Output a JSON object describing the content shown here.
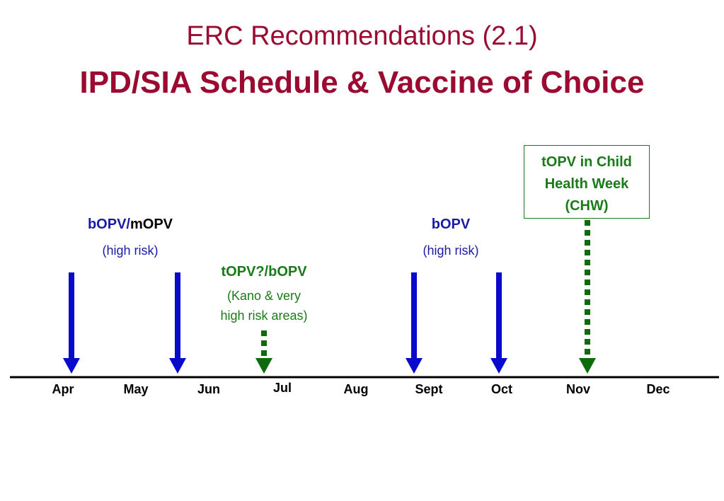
{
  "title": {
    "line1": "ERC Recommendations (2.1)",
    "line2": "IPD/SIA Schedule & Vaccine of Choice"
  },
  "annotations": {
    "apr_may": {
      "vaccine_blue": "bOPV/",
      "vaccine_black": "mOPV",
      "note": "(high risk)"
    },
    "jul": {
      "vaccine": "tOPV?/bOPV",
      "note_line1": "(Kano & very",
      "note_line2": "high risk areas)"
    },
    "sept_oct": {
      "vaccine": "bOPV",
      "note": "(high risk)"
    },
    "nov": {
      "box_text": "tOPV in Child\nHealth Week\n(CHW)"
    }
  },
  "months": [
    "Apr",
    "May",
    "Jun",
    "Jul",
    "Aug",
    "Sept",
    "Oct",
    "Nov",
    "Dec"
  ],
  "arrows": [
    {
      "month": "Apr",
      "style": "solid",
      "color": "#0a0acc"
    },
    {
      "month": "Jun",
      "style": "solid",
      "color": "#0a0acc"
    },
    {
      "month": "Jul",
      "style": "dotted",
      "color": "#0d6b0d"
    },
    {
      "month": "Sept",
      "style": "solid",
      "color": "#0a0acc"
    },
    {
      "month": "Oct",
      "style": "solid",
      "color": "#0a0acc"
    },
    {
      "month": "Nov",
      "style": "dotted",
      "color": "#0d6b0d"
    }
  ],
  "colors": {
    "title": "#9b0a31",
    "blue_arrow": "#0a0acc",
    "green_arrow": "#0d6b0d",
    "timeline": "#000000"
  }
}
